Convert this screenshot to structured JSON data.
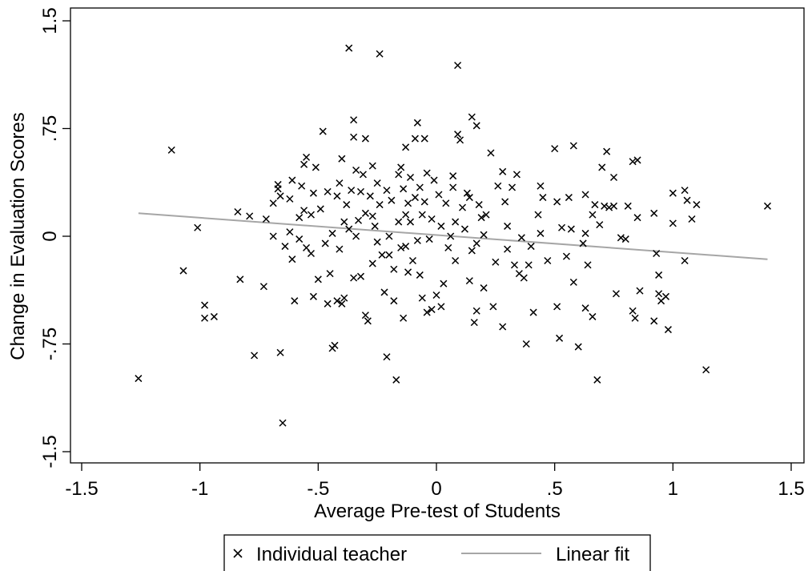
{
  "chart_data": {
    "type": "scatter",
    "xlabel": "Average Pre-test of Students",
    "ylabel": "Change in Evaluation Scores",
    "xlim": [
      -1.5,
      1.5
    ],
    "ylim": [
      -1.5,
      1.5
    ],
    "x_ticks": [
      -1.5,
      -1,
      -0.5,
      0,
      0.5,
      1,
      1.5
    ],
    "x_tick_labels": [
      "-1.5",
      "-1",
      "-.5",
      "0",
      ".5",
      "1",
      "1.5"
    ],
    "y_ticks": [
      -1.5,
      -0.75,
      0,
      0.75,
      1.5
    ],
    "y_tick_labels": [
      "-1.5",
      "-.75",
      "0",
      ".75",
      "1.5"
    ],
    "grid": false,
    "legend": {
      "position": "bottom",
      "entries": [
        {
          "label": "Individual teacher",
          "marker": "x",
          "color": "#000000"
        },
        {
          "label": "Linear fit",
          "marker": "line",
          "color": "#a6a6a6"
        }
      ]
    },
    "fit_line": {
      "x": [
        -1.26,
        1.4
      ],
      "y": [
        0.16,
        -0.16
      ],
      "color": "#a6a6a6"
    },
    "points": [
      [
        -1.26,
        -0.99
      ],
      [
        -1.12,
        0.6
      ],
      [
        -1.07,
        -0.24
      ],
      [
        -1.01,
        0.06
      ],
      [
        -0.98,
        -0.48
      ],
      [
        -0.98,
        -0.57
      ],
      [
        -0.94,
        -0.56
      ],
      [
        -0.84,
        0.17
      ],
      [
        -0.83,
        -0.3
      ],
      [
        -0.79,
        0.14
      ],
      [
        -0.77,
        -0.83
      ],
      [
        -0.73,
        -0.35
      ],
      [
        -0.72,
        0.12
      ],
      [
        -0.69,
        0.23
      ],
      [
        -0.69,
        0.0
      ],
      [
        -0.67,
        0.36
      ],
      [
        -0.67,
        0.33
      ],
      [
        -0.66,
        0.28
      ],
      [
        -0.66,
        -0.81
      ],
      [
        -0.65,
        -1.3
      ],
      [
        -0.64,
        -0.07
      ],
      [
        -0.62,
        0.26
      ],
      [
        -0.62,
        0.03
      ],
      [
        -0.61,
        0.39
      ],
      [
        -0.61,
        -0.16
      ],
      [
        -0.6,
        -0.45
      ],
      [
        -0.58,
        0.13
      ],
      [
        -0.58,
        -0.02
      ],
      [
        -0.57,
        0.35
      ],
      [
        -0.56,
        0.5
      ],
      [
        -0.56,
        0.18
      ],
      [
        -0.55,
        0.55
      ],
      [
        -0.55,
        -0.08
      ],
      [
        -0.53,
        0.15
      ],
      [
        -0.53,
        -0.12
      ],
      [
        -0.52,
        0.3
      ],
      [
        -0.52,
        -0.42
      ],
      [
        -0.51,
        0.48
      ],
      [
        -0.5,
        -0.3
      ],
      [
        -0.49,
        0.19
      ],
      [
        -0.48,
        0.73
      ],
      [
        -0.47,
        -0.05
      ],
      [
        -0.46,
        0.31
      ],
      [
        -0.46,
        -0.47
      ],
      [
        -0.45,
        -0.26
      ],
      [
        -0.44,
        0.02
      ],
      [
        -0.44,
        -0.78
      ],
      [
        -0.43,
        -0.76
      ],
      [
        -0.42,
        0.28
      ],
      [
        -0.42,
        -0.45
      ],
      [
        -0.41,
        0.37
      ],
      [
        -0.41,
        -0.09
      ],
      [
        -0.4,
        0.54
      ],
      [
        -0.4,
        -0.47
      ],
      [
        -0.39,
        0.1
      ],
      [
        -0.39,
        -0.43
      ],
      [
        -0.38,
        0.22
      ],
      [
        -0.37,
        1.31
      ],
      [
        -0.37,
        0.05
      ],
      [
        -0.36,
        0.32
      ],
      [
        -0.35,
        0.81
      ],
      [
        -0.35,
        0.69
      ],
      [
        -0.35,
        -0.29
      ],
      [
        -0.34,
        0.46
      ],
      [
        -0.34,
        0.0
      ],
      [
        -0.33,
        0.11
      ],
      [
        -0.32,
        0.31
      ],
      [
        -0.32,
        -0.28
      ],
      [
        -0.31,
        0.43
      ],
      [
        -0.3,
        0.68
      ],
      [
        -0.3,
        0.16
      ],
      [
        -0.3,
        -0.55
      ],
      [
        -0.29,
        -0.59
      ],
      [
        -0.28,
        0.28
      ],
      [
        -0.27,
        0.49
      ],
      [
        -0.27,
        0.14
      ],
      [
        -0.27,
        -0.19
      ],
      [
        -0.26,
        0.07
      ],
      [
        -0.25,
        0.37
      ],
      [
        -0.25,
        -0.04
      ],
      [
        -0.24,
        1.27
      ],
      [
        -0.24,
        0.22
      ],
      [
        -0.23,
        -0.13
      ],
      [
        -0.22,
        -0.39
      ],
      [
        -0.21,
        -0.84
      ],
      [
        -0.21,
        0.32
      ],
      [
        -0.2,
        -0.13
      ],
      [
        -0.2,
        0.0
      ],
      [
        -0.19,
        0.25
      ],
      [
        -0.18,
        -0.23
      ],
      [
        -0.18,
        -0.45
      ],
      [
        -0.17,
        -1.0
      ],
      [
        -0.16,
        0.43
      ],
      [
        -0.16,
        0.1
      ],
      [
        -0.15,
        -0.08
      ],
      [
        -0.15,
        0.48
      ],
      [
        -0.14,
        0.33
      ],
      [
        -0.14,
        -0.57
      ],
      [
        -0.13,
        0.62
      ],
      [
        -0.13,
        0.15
      ],
      [
        -0.13,
        -0.07
      ],
      [
        -0.12,
        0.23
      ],
      [
        -0.12,
        -0.25
      ],
      [
        -0.11,
        0.41
      ],
      [
        -0.11,
        0.1
      ],
      [
        -0.1,
        -0.17
      ],
      [
        -0.09,
        0.68
      ],
      [
        -0.09,
        0.27
      ],
      [
        -0.08,
        0.79
      ],
      [
        -0.08,
        -0.03
      ],
      [
        -0.07,
        0.34
      ],
      [
        -0.07,
        -0.27
      ],
      [
        -0.06,
        0.15
      ],
      [
        -0.06,
        -0.43
      ],
      [
        -0.05,
        0.68
      ],
      [
        -0.05,
        0.24
      ],
      [
        -0.04,
        0.44
      ],
      [
        -0.04,
        -0.53
      ],
      [
        -0.03,
        -0.02
      ],
      [
        -0.02,
        0.12
      ],
      [
        -0.02,
        -0.51
      ],
      [
        -0.01,
        0.39
      ],
      [
        0.0,
        -0.41
      ],
      [
        0.01,
        0.29
      ],
      [
        0.02,
        0.07
      ],
      [
        0.02,
        -0.49
      ],
      [
        0.03,
        -0.33
      ],
      [
        0.04,
        0.23
      ],
      [
        0.05,
        -0.08
      ],
      [
        0.06,
        0.0
      ],
      [
        0.07,
        0.42
      ],
      [
        0.07,
        0.34
      ],
      [
        0.08,
        -0.17
      ],
      [
        0.08,
        0.1
      ],
      [
        0.09,
        1.19
      ],
      [
        0.09,
        0.71
      ],
      [
        0.1,
        0.67
      ],
      [
        0.11,
        0.2
      ],
      [
        0.12,
        0.05
      ],
      [
        0.13,
        0.3
      ],
      [
        0.14,
        0.27
      ],
      [
        0.14,
        -0.31
      ],
      [
        0.15,
        0.83
      ],
      [
        0.15,
        -0.1
      ],
      [
        0.16,
        -0.6
      ],
      [
        0.17,
        0.77
      ],
      [
        0.17,
        -0.52
      ],
      [
        0.17,
        -0.05
      ],
      [
        0.18,
        0.22
      ],
      [
        0.19,
        0.13
      ],
      [
        0.2,
        0.01
      ],
      [
        0.2,
        -0.36
      ],
      [
        0.21,
        0.15
      ],
      [
        0.23,
        0.58
      ],
      [
        0.24,
        -0.49
      ],
      [
        0.25,
        -0.18
      ],
      [
        0.26,
        0.35
      ],
      [
        0.28,
        0.45
      ],
      [
        0.28,
        -0.63
      ],
      [
        0.29,
        0.24
      ],
      [
        0.3,
        0.07
      ],
      [
        0.3,
        -0.09
      ],
      [
        0.32,
        0.34
      ],
      [
        0.33,
        -0.2
      ],
      [
        0.34,
        0.43
      ],
      [
        0.35,
        -0.26
      ],
      [
        0.36,
        -0.01
      ],
      [
        0.37,
        -0.29
      ],
      [
        0.38,
        -0.75
      ],
      [
        0.39,
        -0.2
      ],
      [
        0.4,
        -0.07
      ],
      [
        0.41,
        -0.53
      ],
      [
        0.43,
        0.15
      ],
      [
        0.44,
        0.02
      ],
      [
        0.44,
        0.35
      ],
      [
        0.45,
        0.27
      ],
      [
        0.47,
        -0.17
      ],
      [
        0.5,
        0.61
      ],
      [
        0.51,
        0.24
      ],
      [
        0.51,
        -0.49
      ],
      [
        0.52,
        -0.71
      ],
      [
        0.53,
        0.06
      ],
      [
        0.55,
        -0.14
      ],
      [
        0.56,
        0.27
      ],
      [
        0.57,
        0.05
      ],
      [
        0.58,
        0.63
      ],
      [
        0.58,
        -0.32
      ],
      [
        0.6,
        -0.77
      ],
      [
        0.62,
        -0.05
      ],
      [
        0.63,
        0.29
      ],
      [
        0.63,
        -0.5
      ],
      [
        0.63,
        0.02
      ],
      [
        0.64,
        -0.2
      ],
      [
        0.66,
        0.15
      ],
      [
        0.66,
        -0.56
      ],
      [
        0.67,
        0.22
      ],
      [
        0.68,
        -1.0
      ],
      [
        0.69,
        0.08
      ],
      [
        0.7,
        0.48
      ],
      [
        0.71,
        0.21
      ],
      [
        0.72,
        0.59
      ],
      [
        0.73,
        0.2
      ],
      [
        0.75,
        0.41
      ],
      [
        0.75,
        0.21
      ],
      [
        0.76,
        -0.4
      ],
      [
        0.78,
        -0.01
      ],
      [
        0.8,
        -0.02
      ],
      [
        0.81,
        0.21
      ],
      [
        0.83,
        0.52
      ],
      [
        0.83,
        -0.52
      ],
      [
        0.84,
        -0.57
      ],
      [
        0.85,
        0.53
      ],
      [
        0.85,
        0.13
      ],
      [
        0.86,
        -0.38
      ],
      [
        0.92,
        0.16
      ],
      [
        0.92,
        -0.59
      ],
      [
        0.93,
        -0.12
      ],
      [
        0.94,
        -0.27
      ],
      [
        0.94,
        -0.4
      ],
      [
        0.95,
        -0.45
      ],
      [
        0.97,
        -0.42
      ],
      [
        0.98,
        -0.65
      ],
      [
        1.0,
        0.3
      ],
      [
        1.0,
        0.09
      ],
      [
        1.05,
        -0.17
      ],
      [
        1.05,
        0.32
      ],
      [
        1.06,
        0.25
      ],
      [
        1.08,
        0.12
      ],
      [
        1.1,
        0.22
      ],
      [
        1.14,
        -0.93
      ],
      [
        1.4,
        0.21
      ]
    ]
  }
}
